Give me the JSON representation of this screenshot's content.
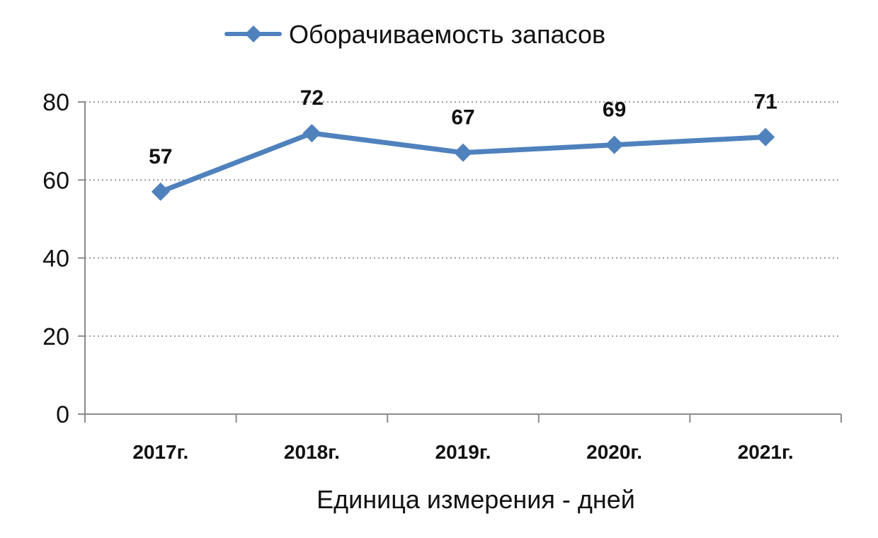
{
  "chart_data": {
    "type": "line",
    "categories": [
      "2017г.",
      "2018г.",
      "2019г.",
      "2020г.",
      "2021г."
    ],
    "series": [
      {
        "name": "Оборачиваемость запасов",
        "values": [
          57,
          72,
          67,
          69,
          71
        ],
        "data_labels": [
          "57",
          "72",
          "67",
          "69",
          "71"
        ],
        "color": "#4F81BD",
        "marker": "diamond"
      }
    ],
    "xlabel": "Единица измерения - дней",
    "ylabel": "",
    "ylim": [
      0,
      80
    ],
    "yticks": [
      "0",
      "20",
      "40",
      "60",
      "80"
    ],
    "grid": true,
    "grid_style": "dotted",
    "legend": "top-center"
  }
}
